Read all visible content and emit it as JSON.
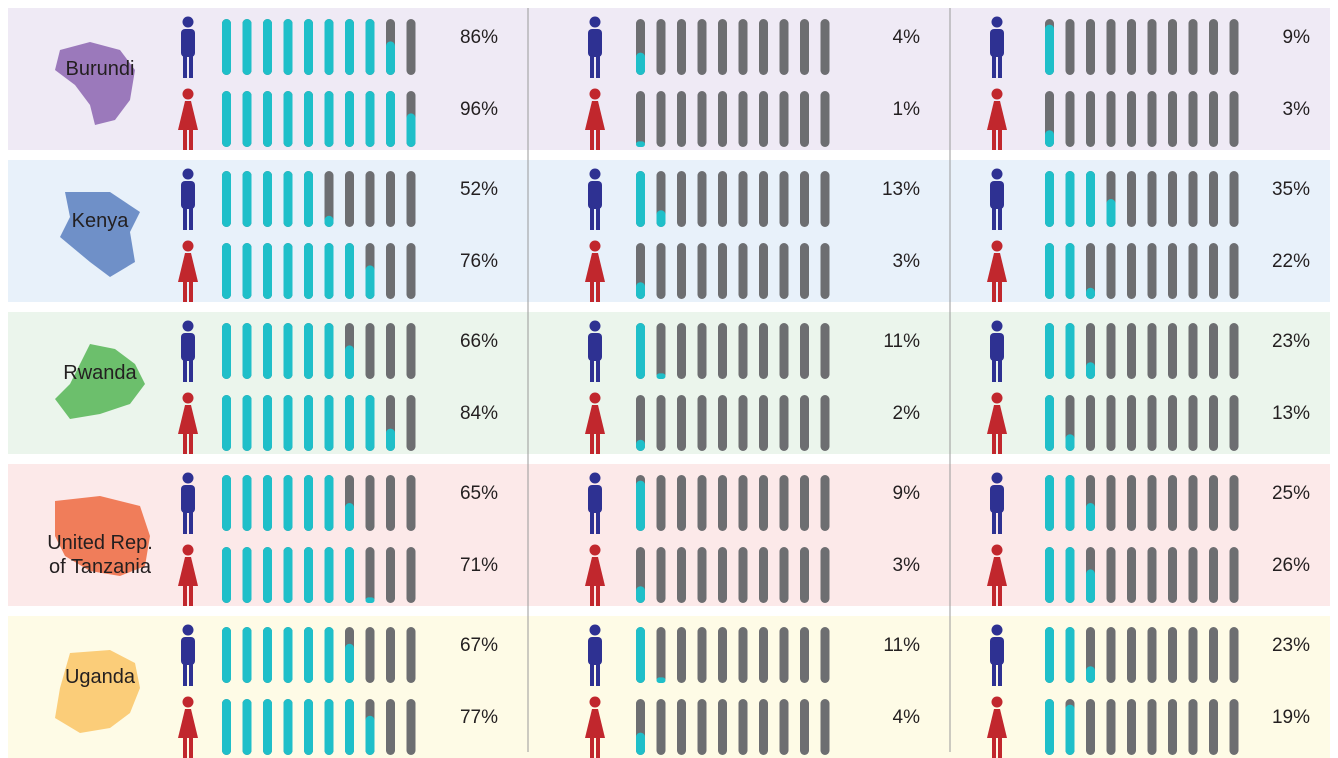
{
  "chart_data": {
    "type": "pictogram",
    "categories": [
      "Burundi",
      "Kenya",
      "Rwanda",
      "United Rep. of Tanzania",
      "Uganda"
    ],
    "category_colors": [
      "#efeaf5",
      "#e8f1fa",
      "#ebf5ec",
      "#fce9e9",
      "#fefbe6"
    ],
    "map_colors": [
      "#9b79bb",
      "#6f90c8",
      "#6cbf6c",
      "#f07d5a",
      "#fbcd79"
    ],
    "fill_color": "#1fbfc9",
    "empty_color": "#6d6e71",
    "male_color": "#2e3192",
    "female_color": "#c1272d",
    "panels": [
      {
        "male": {
          "values": [
            86,
            52,
            66,
            65,
            67
          ],
          "value_labels": [
            "86%",
            "52%",
            "66%",
            "65%",
            "67%"
          ]
        },
        "female": {
          "values": [
            96,
            76,
            84,
            71,
            77
          ],
          "value_labels": [
            "96%",
            "76%",
            "84%",
            "71%",
            "77%"
          ]
        }
      },
      {
        "male": {
          "values": [
            4,
            13,
            11,
            9,
            11
          ],
          "value_labels": [
            "4%",
            "13%",
            "11%",
            "9%",
            "11%"
          ]
        },
        "female": {
          "values": [
            1,
            3,
            2,
            3,
            4
          ],
          "value_labels": [
            "1%",
            "3%",
            "2%",
            "3%",
            "4%"
          ]
        }
      },
      {
        "male": {
          "values": [
            9,
            35,
            23,
            25,
            23
          ],
          "value_labels": [
            "9%",
            "35%",
            "23%",
            "25%",
            "23%"
          ]
        },
        "female": {
          "values": [
            3,
            22,
            13,
            26,
            19
          ],
          "value_labels": [
            "3%",
            "22%",
            "13%",
            "26%",
            "19%"
          ]
        }
      }
    ]
  }
}
